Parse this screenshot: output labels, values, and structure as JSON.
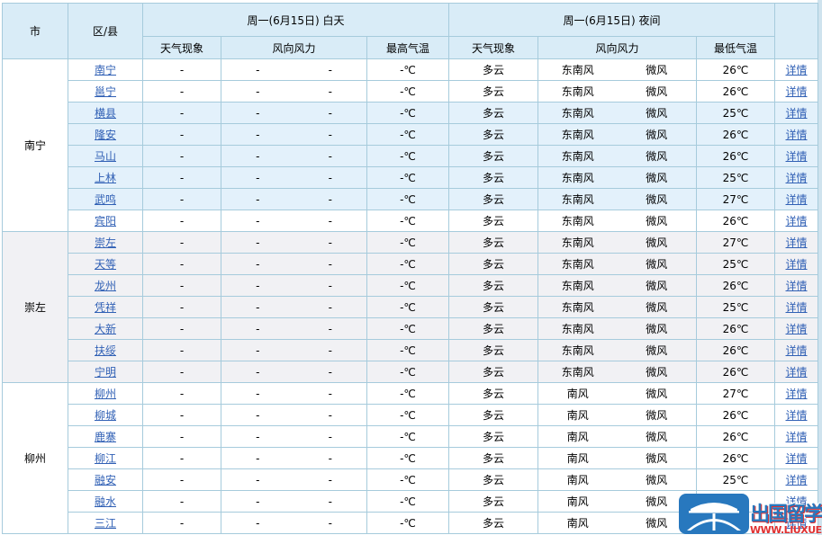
{
  "table": {
    "col_city": "市",
    "col_district": "区/县",
    "day": {
      "title": "周一(6月15日) 白天",
      "weather": "天气现象",
      "wind": "风向风力",
      "temp": "最高气温"
    },
    "night": {
      "title": "周一(6月15日) 夜间",
      "weather": "天气现象",
      "wind": "风向风力",
      "temp": "最低气温"
    },
    "detail_label": "详情",
    "day_placeholder": {
      "weather": "-",
      "wind_dir": "-",
      "wind_force": "-",
      "temp": "-℃"
    },
    "groups": [
      {
        "city": "南宁",
        "city_bg": "white",
        "rows": [
          {
            "district": "南宁",
            "bg": "white",
            "day_weather": "-",
            "day_wind_dir": "-",
            "day_wind_force": "-",
            "day_temp": "-℃",
            "night_weather": "多云",
            "night_wind_dir": "东南风",
            "night_wind_force": "微风",
            "night_temp": "26℃",
            "detail": "详情"
          },
          {
            "district": "邕宁",
            "bg": "white",
            "day_weather": "-",
            "day_wind_dir": "-",
            "day_wind_force": "-",
            "day_temp": "-℃",
            "night_weather": "多云",
            "night_wind_dir": "东南风",
            "night_wind_force": "微风",
            "night_temp": "26℃",
            "detail": "详情"
          },
          {
            "district": "横县",
            "bg": "blue",
            "day_weather": "-",
            "day_wind_dir": "-",
            "day_wind_force": "-",
            "day_temp": "-℃",
            "night_weather": "多云",
            "night_wind_dir": "东南风",
            "night_wind_force": "微风",
            "night_temp": "25℃",
            "detail": "详情"
          },
          {
            "district": "隆安",
            "bg": "blue",
            "day_weather": "-",
            "day_wind_dir": "-",
            "day_wind_force": "-",
            "day_temp": "-℃",
            "night_weather": "多云",
            "night_wind_dir": "东南风",
            "night_wind_force": "微风",
            "night_temp": "26℃",
            "detail": "详情"
          },
          {
            "district": "马山",
            "bg": "blue",
            "day_weather": "-",
            "day_wind_dir": "-",
            "day_wind_force": "-",
            "day_temp": "-℃",
            "night_weather": "多云",
            "night_wind_dir": "东南风",
            "night_wind_force": "微风",
            "night_temp": "26℃",
            "detail": "详情"
          },
          {
            "district": "上林",
            "bg": "blue",
            "day_weather": "-",
            "day_wind_dir": "-",
            "day_wind_force": "-",
            "day_temp": "-℃",
            "night_weather": "多云",
            "night_wind_dir": "东南风",
            "night_wind_force": "微风",
            "night_temp": "25℃",
            "detail": "详情"
          },
          {
            "district": "武鸣",
            "bg": "blue",
            "day_weather": "-",
            "day_wind_dir": "-",
            "day_wind_force": "-",
            "day_temp": "-℃",
            "night_weather": "多云",
            "night_wind_dir": "东南风",
            "night_wind_force": "微风",
            "night_temp": "27℃",
            "detail": "详情"
          },
          {
            "district": "宾阳",
            "bg": "white",
            "day_weather": "-",
            "day_wind_dir": "-",
            "day_wind_force": "-",
            "day_temp": "-℃",
            "night_weather": "多云",
            "night_wind_dir": "东南风",
            "night_wind_force": "微风",
            "night_temp": "26℃",
            "detail": "详情"
          }
        ]
      },
      {
        "city": "崇左",
        "city_bg": "gray",
        "rows": [
          {
            "district": "崇左",
            "bg": "gray",
            "day_weather": "-",
            "day_wind_dir": "-",
            "day_wind_force": "-",
            "day_temp": "-℃",
            "night_weather": "多云",
            "night_wind_dir": "东南风",
            "night_wind_force": "微风",
            "night_temp": "27℃",
            "detail": "详情"
          },
          {
            "district": "天等",
            "bg": "gray",
            "day_weather": "-",
            "day_wind_dir": "-",
            "day_wind_force": "-",
            "day_temp": "-℃",
            "night_weather": "多云",
            "night_wind_dir": "东南风",
            "night_wind_force": "微风",
            "night_temp": "25℃",
            "detail": "详情"
          },
          {
            "district": "龙州",
            "bg": "gray",
            "day_weather": "-",
            "day_wind_dir": "-",
            "day_wind_force": "-",
            "day_temp": "-℃",
            "night_weather": "多云",
            "night_wind_dir": "东南风",
            "night_wind_force": "微风",
            "night_temp": "26℃",
            "detail": "详情"
          },
          {
            "district": "凭祥",
            "bg": "gray",
            "day_weather": "-",
            "day_wind_dir": "-",
            "day_wind_force": "-",
            "day_temp": "-℃",
            "night_weather": "多云",
            "night_wind_dir": "东南风",
            "night_wind_force": "微风",
            "night_temp": "25℃",
            "detail": "详情"
          },
          {
            "district": "大新",
            "bg": "gray",
            "day_weather": "-",
            "day_wind_dir": "-",
            "day_wind_force": "-",
            "day_temp": "-℃",
            "night_weather": "多云",
            "night_wind_dir": "东南风",
            "night_wind_force": "微风",
            "night_temp": "26℃",
            "detail": "详情"
          },
          {
            "district": "扶绥",
            "bg": "gray",
            "day_weather": "-",
            "day_wind_dir": "-",
            "day_wind_force": "-",
            "day_temp": "-℃",
            "night_weather": "多云",
            "night_wind_dir": "东南风",
            "night_wind_force": "微风",
            "night_temp": "26℃",
            "detail": "详情"
          },
          {
            "district": "宁明",
            "bg": "gray",
            "day_weather": "-",
            "day_wind_dir": "-",
            "day_wind_force": "-",
            "day_temp": "-℃",
            "night_weather": "多云",
            "night_wind_dir": "东南风",
            "night_wind_force": "微风",
            "night_temp": "26℃",
            "detail": "详情"
          }
        ]
      },
      {
        "city": "柳州",
        "city_bg": "white",
        "rows": [
          {
            "district": "柳州",
            "bg": "white",
            "day_weather": "-",
            "day_wind_dir": "-",
            "day_wind_force": "-",
            "day_temp": "-℃",
            "night_weather": "多云",
            "night_wind_dir": "南风",
            "night_wind_force": "微风",
            "night_temp": "27℃",
            "detail": "详情"
          },
          {
            "district": "柳城",
            "bg": "white",
            "day_weather": "-",
            "day_wind_dir": "-",
            "day_wind_force": "-",
            "day_temp": "-℃",
            "night_weather": "多云",
            "night_wind_dir": "南风",
            "night_wind_force": "微风",
            "night_temp": "26℃",
            "detail": "详情"
          },
          {
            "district": "鹿寨",
            "bg": "white",
            "day_weather": "-",
            "day_wind_dir": "-",
            "day_wind_force": "-",
            "day_temp": "-℃",
            "night_weather": "多云",
            "night_wind_dir": "南风",
            "night_wind_force": "微风",
            "night_temp": "26℃",
            "detail": "详情"
          },
          {
            "district": "柳江",
            "bg": "white",
            "day_weather": "-",
            "day_wind_dir": "-",
            "day_wind_force": "-",
            "day_temp": "-℃",
            "night_weather": "多云",
            "night_wind_dir": "南风",
            "night_wind_force": "微风",
            "night_temp": "26℃",
            "detail": "详情"
          },
          {
            "district": "融安",
            "bg": "white",
            "day_weather": "-",
            "day_wind_dir": "-",
            "day_wind_force": "-",
            "day_temp": "-℃",
            "night_weather": "多云",
            "night_wind_dir": "南风",
            "night_wind_force": "微风",
            "night_temp": "25℃",
            "detail": "详情"
          },
          {
            "district": "融水",
            "bg": "white",
            "day_weather": "-",
            "day_wind_dir": "-",
            "day_wind_force": "-",
            "day_temp": "-℃",
            "night_weather": "多云",
            "night_wind_dir": "南风",
            "night_wind_force": "微风",
            "night_temp": "26℃",
            "detail": "详情"
          },
          {
            "district": "三江",
            "bg": "white",
            "day_weather": "-",
            "day_wind_dir": "-",
            "day_wind_force": "-",
            "day_temp": "-℃",
            "night_weather": "多云",
            "night_wind_dir": "南风",
            "night_wind_force": "微风",
            "night_temp": "",
            "detail": "详情"
          }
        ]
      }
    ]
  },
  "watermark": {
    "site_name": "出国留学网",
    "site_url": "WWW.LIUXUE86.COM"
  },
  "colors": {
    "header_bg": "#d9ecf7",
    "border": "#a6cbdc",
    "row_blue": "#e3f1fb",
    "row_gray": "#f1f1f4",
    "link": "#3060b5",
    "wm_red": "#e03131",
    "wm_blue": "#2878be",
    "page_edge": "#cfe3ee"
  }
}
